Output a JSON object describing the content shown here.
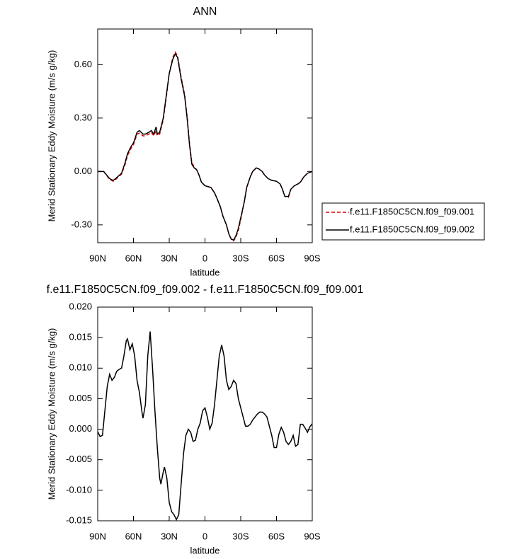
{
  "chart_data": [
    {
      "type": "line",
      "title": "ANN",
      "xlabel": "latitude",
      "ylabel": "Merid Stationary Eddy Moisture (m/s g/kg)",
      "x": [
        90,
        85,
        80,
        77,
        75,
        70,
        67,
        65,
        62,
        60,
        57,
        55,
        52,
        50,
        47,
        45,
        43,
        41,
        40,
        38,
        35,
        32,
        30,
        27,
        25,
        23,
        20,
        17,
        15,
        13,
        11,
        9,
        7,
        5,
        3,
        0,
        -5,
        -8,
        -10,
        -13,
        -15,
        -18,
        -20,
        -22,
        -24,
        -26,
        -28,
        -30,
        -33,
        -35,
        -38,
        -40,
        -43,
        -45,
        -48,
        -50,
        -53,
        -56,
        -60,
        -63,
        -65,
        -67,
        -70,
        -72,
        -75,
        -78,
        -80,
        -83,
        -86,
        -90
      ],
      "series": [
        {
          "name": "f.e11.F1850C5CN.f09_f09.001",
          "color": "#e00000",
          "line_style": "dashed",
          "values": [
            0.0,
            0.0,
            -0.045,
            -0.055,
            -0.045,
            -0.015,
            0.04,
            0.09,
            0.13,
            0.15,
            0.21,
            0.215,
            0.2,
            0.2,
            0.21,
            0.22,
            0.2,
            0.23,
            0.2,
            0.21,
            0.29,
            0.44,
            0.55,
            0.64,
            0.67,
            0.65,
            0.53,
            0.43,
            0.31,
            0.16,
            0.05,
            0.025,
            0.01,
            -0.02,
            -0.06,
            -0.08,
            -0.09,
            -0.12,
            -0.15,
            -0.2,
            -0.25,
            -0.3,
            -0.35,
            -0.38,
            -0.39,
            -0.37,
            -0.33,
            -0.27,
            -0.17,
            -0.09,
            -0.03,
            0.0,
            0.02,
            0.015,
            0.0,
            -0.02,
            -0.04,
            -0.05,
            -0.055,
            -0.07,
            -0.1,
            -0.14,
            -0.145,
            -0.1,
            -0.08,
            -0.07,
            -0.06,
            -0.03,
            -0.01,
            0.0
          ]
        },
        {
          "name": "f.e11.F1850C5CN.f09_f09.002",
          "color": "#000000",
          "line_style": "solid",
          "values": [
            0.0,
            0.0,
            -0.04,
            -0.05,
            -0.04,
            -0.01,
            0.05,
            0.1,
            0.14,
            0.16,
            0.22,
            0.23,
            0.21,
            0.21,
            0.22,
            0.23,
            0.21,
            0.25,
            0.21,
            0.22,
            0.3,
            0.45,
            0.55,
            0.63,
            0.66,
            0.64,
            0.52,
            0.42,
            0.3,
            0.15,
            0.04,
            0.02,
            0.01,
            -0.02,
            -0.06,
            -0.08,
            -0.09,
            -0.12,
            -0.15,
            -0.2,
            -0.25,
            -0.3,
            -0.35,
            -0.38,
            -0.385,
            -0.36,
            -0.32,
            -0.26,
            -0.17,
            -0.09,
            -0.03,
            0.0,
            0.02,
            0.015,
            0.0,
            -0.02,
            -0.04,
            -0.05,
            -0.055,
            -0.07,
            -0.1,
            -0.14,
            -0.14,
            -0.1,
            -0.08,
            -0.07,
            -0.06,
            -0.03,
            -0.01,
            0.0
          ]
        }
      ],
      "xlim": [
        90,
        -90
      ],
      "xticks": [
        {
          "value": 90,
          "label": "90N"
        },
        {
          "value": 60,
          "label": "60N"
        },
        {
          "value": 30,
          "label": "30N"
        },
        0,
        {
          "value": -30,
          "label": "30S"
        },
        {
          "value": -60,
          "label": "60S"
        },
        {
          "value": -90,
          "label": "90S"
        }
      ],
      "ylim": [
        -0.4,
        0.8
      ],
      "yticks": [
        {
          "value": -0.3,
          "label": "-0.30"
        },
        {
          "value": 0,
          "label": "0.00"
        },
        {
          "value": 0.3,
          "label": "0.30"
        },
        {
          "value": 0.6,
          "label": "0.60"
        }
      ],
      "legend": "right"
    },
    {
      "type": "line",
      "title": "f.e11.F1850C5CN.f09_f09.002 - f.e11.F1850C5CN.f09_f09.001",
      "xlabel": "latitude",
      "ylabel": "Merid Stationary Eddy Moisture (m/s g/kg)",
      "x": [
        90,
        88,
        86,
        84,
        82,
        80,
        78,
        76,
        74,
        72,
        70,
        68,
        66,
        65,
        63,
        61,
        59,
        57,
        55,
        53,
        52,
        50,
        48,
        46,
        44,
        42,
        40,
        38,
        37,
        35,
        34,
        32,
        30,
        28,
        26,
        24,
        22,
        20,
        18,
        16,
        14,
        12,
        10,
        8,
        6,
        4,
        2,
        0,
        -2,
        -4,
        -6,
        -8,
        -10,
        -12,
        -14,
        -16,
        -18,
        -20,
        -22,
        -24,
        -26,
        -28,
        -30,
        -32,
        -34,
        -36,
        -38,
        -40,
        -42,
        -44,
        -46,
        -48,
        -50,
        -52,
        -54,
        -56,
        -58,
        -60,
        -62,
        -64,
        -66,
        -68,
        -70,
        -72,
        -74,
        -76,
        -78,
        -80,
        -82,
        -84,
        -86,
        -88,
        -90
      ],
      "series": [
        {
          "color": "#000000",
          "line_style": "solid",
          "values": [
            -0.0004,
            -0.0012,
            -0.001,
            0.003,
            0.007,
            0.009,
            0.008,
            0.0085,
            0.0095,
            0.0098,
            0.01,
            0.012,
            0.0145,
            0.0148,
            0.013,
            0.014,
            0.012,
            0.008,
            0.006,
            0.003,
            0.0018,
            0.004,
            0.012,
            0.016,
            0.01,
            0.003,
            -0.003,
            -0.008,
            -0.009,
            -0.007,
            -0.0062,
            -0.008,
            -0.012,
            -0.0135,
            -0.014,
            -0.0148,
            -0.014,
            -0.009,
            -0.004,
            -0.001,
            0.0,
            -0.0005,
            -0.002,
            -0.0018,
            0.0,
            0.001,
            0.003,
            0.0035,
            0.002,
            0.0,
            0.001,
            0.004,
            0.008,
            0.012,
            0.0138,
            0.012,
            0.008,
            0.0065,
            0.007,
            0.008,
            0.0075,
            0.005,
            0.0035,
            0.002,
            0.0005,
            0.0005,
            0.0008,
            0.0015,
            0.002,
            0.0025,
            0.0028,
            0.0028,
            0.0025,
            0.002,
            0.0005,
            -0.001,
            -0.003,
            -0.003,
            -0.0008,
            0.0003,
            -0.0005,
            -0.002,
            -0.0025,
            -0.002,
            -0.001,
            -0.0028,
            -0.0025,
            0.0008,
            0.0008,
            0.0002,
            -0.0005,
            0.0004,
            0.0009
          ]
        }
      ],
      "xlim": [
        90,
        -90
      ],
      "xticks": [
        {
          "value": 90,
          "label": "90N"
        },
        {
          "value": 60,
          "label": "60N"
        },
        {
          "value": 30,
          "label": "30N"
        },
        0,
        {
          "value": -30,
          "label": "30S"
        },
        {
          "value": -60,
          "label": "60S"
        },
        {
          "value": -90,
          "label": "90S"
        }
      ],
      "ylim": [
        -0.015,
        0.02
      ],
      "yticks": [
        {
          "value": -0.015,
          "label": "-0.015"
        },
        {
          "value": -0.01,
          "label": "-0.010"
        },
        {
          "value": -0.005,
          "label": "-0.005"
        },
        {
          "value": 0,
          "label": "0.000"
        },
        {
          "value": 0.005,
          "label": "0.005"
        },
        {
          "value": 0.01,
          "label": "0.010"
        },
        {
          "value": 0.015,
          "label": "0.015"
        },
        {
          "value": 0.02,
          "label": "0.020"
        }
      ]
    }
  ]
}
